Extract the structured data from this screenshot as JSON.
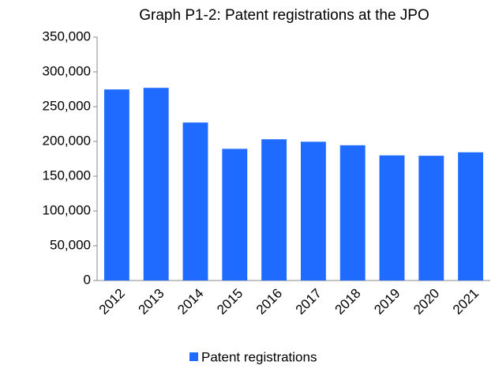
{
  "chart_data": {
    "type": "bar",
    "title": "Graph P1-2: Patent registrations at the JPO",
    "categories": [
      "2012",
      "2013",
      "2014",
      "2015",
      "2016",
      "2017",
      "2018",
      "2019",
      "2020",
      "2021"
    ],
    "series": [
      {
        "name": "Patent registrations",
        "color": "#1f6bff",
        "values": [
          274791,
          277079,
          227142,
          189358,
          203087,
          199577,
          194525,
          179910,
          179383,
          184372
        ]
      }
    ],
    "ylim": [
      0,
      350000
    ],
    "yticks": [
      0,
      {
        "value": 50000,
        "label": "50,000"
      },
      {
        "value": 100000,
        "label": "100,000"
      },
      {
        "value": 150000,
        "label": "150,000"
      },
      {
        "value": 200000,
        "label": "200,000"
      },
      {
        "value": 250000,
        "label": "250,000"
      },
      {
        "value": 300000,
        "label": "300,000"
      },
      {
        "value": 350000,
        "label": "350,000"
      }
    ],
    "grid": false,
    "legend": "bottom"
  }
}
